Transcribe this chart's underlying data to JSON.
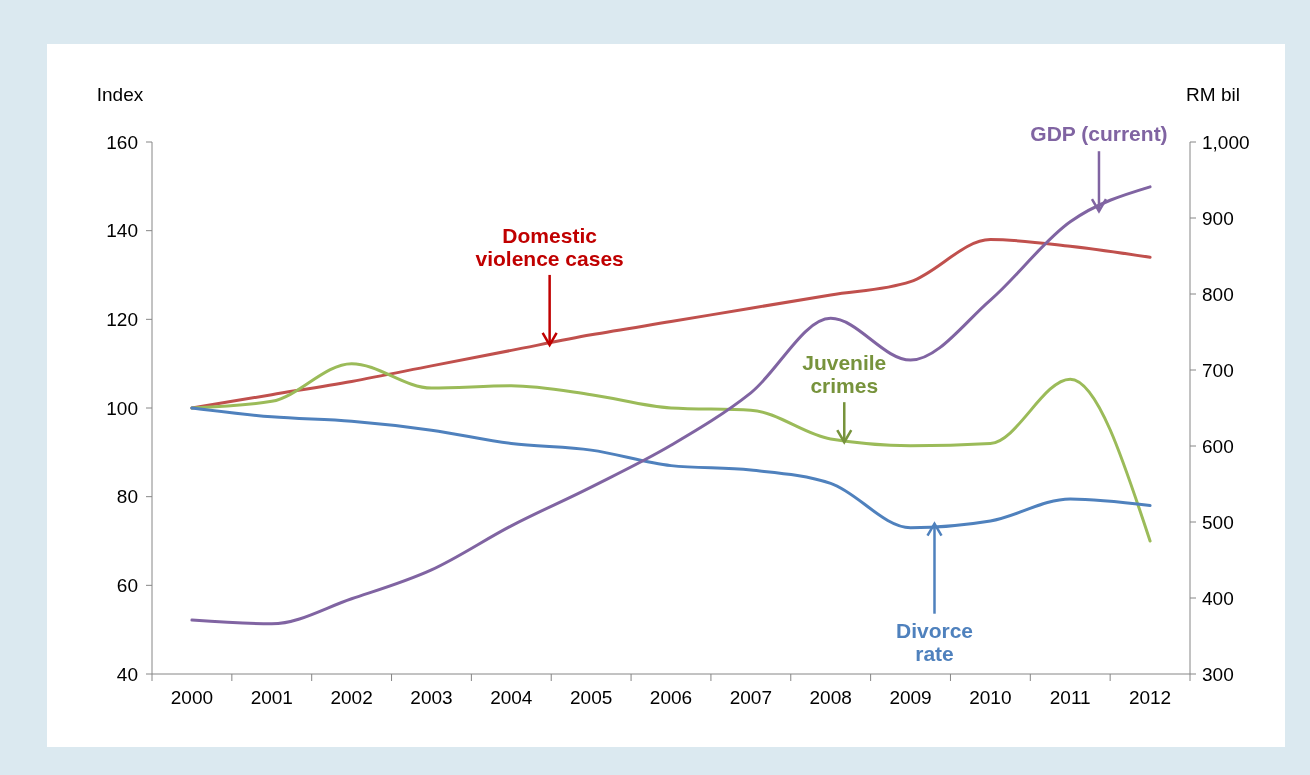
{
  "chart_data": {
    "type": "line",
    "ylabel": "Index",
    "y2label": "RM bil",
    "categories": [
      "2000",
      "2001",
      "2002",
      "2003",
      "2004",
      "2005",
      "2006",
      "2007",
      "2008",
      "2009",
      "2010",
      "2011",
      "2012"
    ],
    "series": [
      {
        "name": "Domestic violence cases",
        "color": "#c0504d",
        "values": [
          100,
          103,
          106,
          109.5,
          113,
          116.5,
          119.5,
          122.5,
          125.5,
          128.5,
          138,
          136.5,
          134
        ]
      },
      {
        "name": "Juvenile crimes",
        "color": "#9bbb59",
        "values": [
          100,
          101.5,
          110,
          104.5,
          105,
          103,
          100,
          99.5,
          93,
          91.5,
          92,
          106.5,
          70
        ]
      },
      {
        "name": "Divorce rate",
        "color": "#4f81bd",
        "values": [
          100,
          98,
          97,
          95,
          92,
          90.5,
          87,
          86,
          83,
          73,
          74.5,
          79.5,
          78
        ]
      },
      {
        "name": "GDP (current)",
        "color": "#8064a2",
        "axis": "y2",
        "values": [
          371,
          366,
          399,
          437,
          495,
          546,
          601,
          670,
          768,
          713,
          792,
          895,
          941
        ]
      }
    ],
    "ylim": [
      40,
      160
    ],
    "yticks": [
      40,
      60,
      80,
      100,
      120,
      140,
      160
    ],
    "y2lim": [
      300,
      1000
    ],
    "y2ticks": [
      300,
      400,
      500,
      600,
      700,
      800,
      900,
      {
        "value": 1000,
        "label": "1,000"
      }
    ],
    "grid": false,
    "line_style": "solid",
    "marker": "none"
  }
}
